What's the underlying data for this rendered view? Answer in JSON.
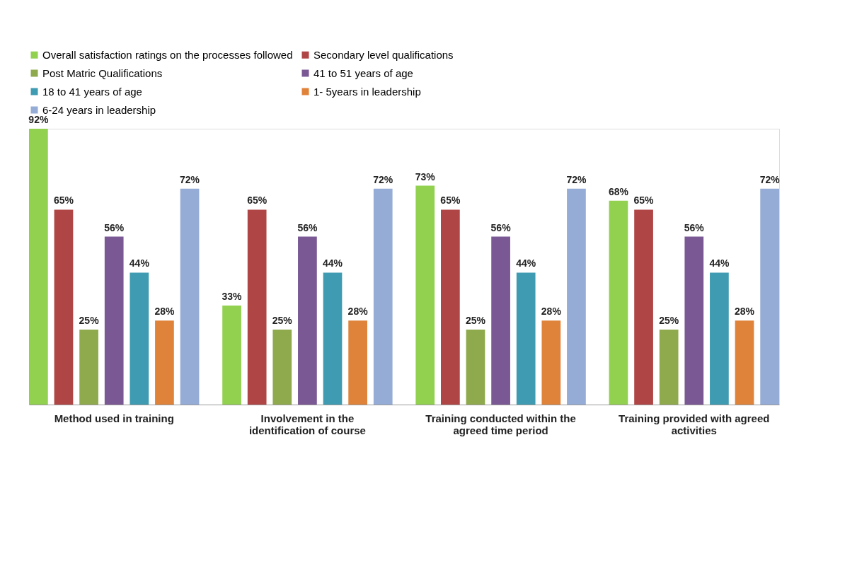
{
  "chart_data": {
    "type": "bar",
    "categories": [
      "Method used in training",
      "Involvement in the identification of course",
      "Training conducted within the agreed time  period",
      "Training provided with agreed activities"
    ],
    "series": [
      {
        "name": "Overall satisfaction ratings on the processes followed",
        "color": "#92d050",
        "values": [
          92,
          33,
          73,
          68
        ],
        "value_labels": [
          "92%",
          "33%",
          "73%",
          "68%"
        ]
      },
      {
        "name": "Secondary level qualifications",
        "color": "#b04545",
        "values": [
          65,
          65,
          65,
          65
        ],
        "value_labels": [
          "65%",
          "65%",
          "65%",
          "65%"
        ]
      },
      {
        "name": "Post Matric Qualifications",
        "color": "#8faa4c",
        "values": [
          25,
          25,
          25,
          25
        ],
        "value_labels": [
          "25%",
          "25%",
          "25%",
          "25%"
        ]
      },
      {
        "name": "41 to 51 years of age",
        "color": "#7a5894",
        "values": [
          56,
          56,
          56,
          56
        ],
        "value_labels": [
          "56%",
          "56%",
          "56%",
          "56%"
        ]
      },
      {
        "name": "18 to 41 years of age",
        "color": "#3f9bb1",
        "values": [
          44,
          44,
          44,
          44
        ],
        "value_labels": [
          "44%",
          "44%",
          "44%",
          "44%"
        ]
      },
      {
        "name": "1- 5years in leadership",
        "color": "#e0833a",
        "values": [
          28,
          28,
          28,
          28
        ],
        "value_labels": [
          "28%",
          "28%",
          "28%",
          "28%"
        ]
      },
      {
        "name": "6-24 years in leadership",
        "color": "#95acd6",
        "values": [
          72,
          72,
          72,
          72
        ],
        "value_labels": [
          "72%",
          "72%",
          "72%",
          "72%"
        ]
      }
    ],
    "legend": "top",
    "grid": false
  }
}
